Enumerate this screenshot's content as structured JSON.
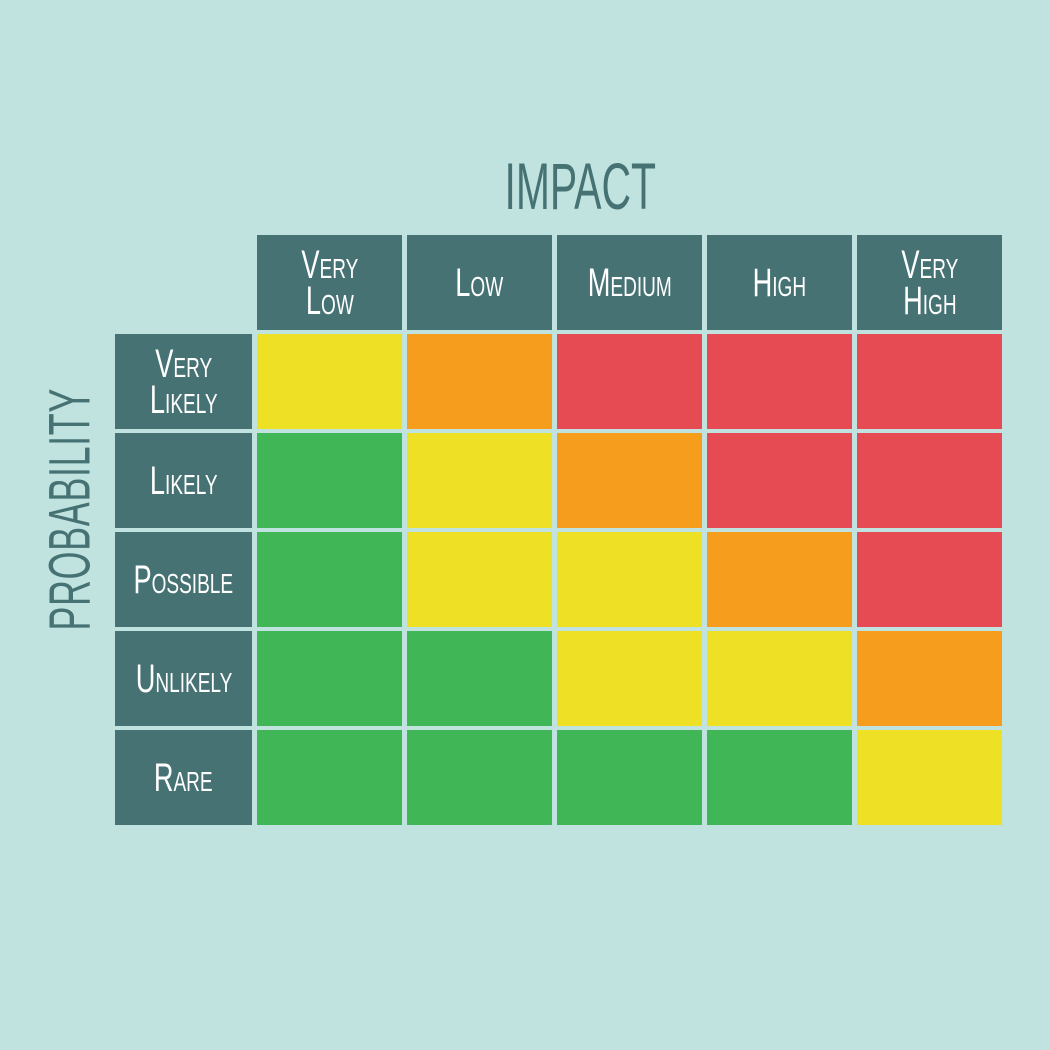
{
  "impact_label": "IMPACT",
  "probability_label": "PROBABILITY",
  "impact_levels": [
    "Very\nLow",
    "Low",
    "Medium",
    "High",
    "Very\nHigh"
  ],
  "probability_levels": [
    "Very\nLikely",
    "Likely",
    "Possible",
    "Unlikely",
    "Rare"
  ],
  "colors": {
    "header": "#467274",
    "background": "#C0E3E0",
    "green": "#40B656",
    "yellow": "#EEE024",
    "orange": "#F79D1E",
    "red": "#E64B53"
  },
  "matrix": [
    [
      "yellow",
      "orange",
      "red",
      "red",
      "red"
    ],
    [
      "green",
      "yellow",
      "orange",
      "red",
      "red"
    ],
    [
      "green",
      "yellow",
      "yellow",
      "orange",
      "red"
    ],
    [
      "green",
      "green",
      "yellow",
      "yellow",
      "orange"
    ],
    [
      "green",
      "green",
      "green",
      "green",
      "yellow"
    ]
  ]
}
